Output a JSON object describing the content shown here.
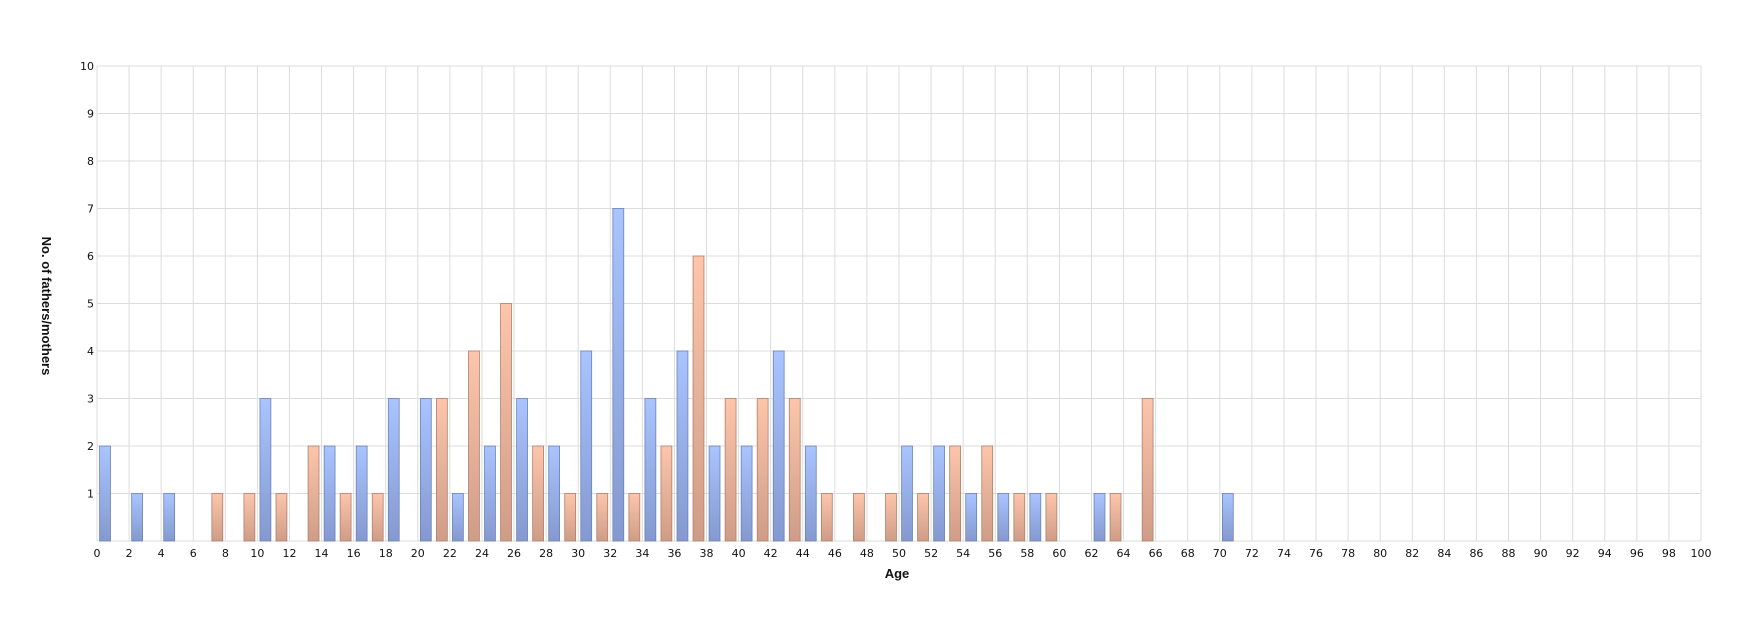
{
  "chart_data": {
    "type": "bar",
    "title": "",
    "xlabel": "Age",
    "ylabel": "No. of fathers/mothers",
    "xlim": [
      0,
      100
    ],
    "ylim": [
      0,
      10
    ],
    "x_ticks": [
      0,
      2,
      4,
      6,
      8,
      10,
      12,
      14,
      16,
      18,
      20,
      22,
      24,
      26,
      28,
      30,
      32,
      34,
      36,
      38,
      40,
      42,
      44,
      46,
      48,
      50,
      52,
      54,
      56,
      58,
      60,
      62,
      64,
      66,
      68,
      70,
      72,
      74,
      76,
      78,
      80,
      82,
      84,
      86,
      88,
      90,
      92,
      94,
      96,
      98,
      100
    ],
    "y_ticks": [
      1,
      2,
      3,
      4,
      5,
      6,
      7,
      8,
      9,
      10
    ],
    "grid": true,
    "series": [
      {
        "color": "#a4bdf5",
        "points": [
          {
            "x": 0,
            "y": 2
          },
          {
            "x": 2,
            "y": 1
          },
          {
            "x": 4,
            "y": 1
          },
          {
            "x": 10,
            "y": 3
          },
          {
            "x": 14,
            "y": 2
          },
          {
            "x": 16,
            "y": 2
          },
          {
            "x": 18,
            "y": 3
          },
          {
            "x": 20,
            "y": 3
          },
          {
            "x": 22,
            "y": 1
          },
          {
            "x": 24,
            "y": 2
          },
          {
            "x": 26,
            "y": 3
          },
          {
            "x": 28,
            "y": 2
          },
          {
            "x": 30,
            "y": 4
          },
          {
            "x": 32,
            "y": 7
          },
          {
            "x": 34,
            "y": 3
          },
          {
            "x": 36,
            "y": 4
          },
          {
            "x": 38,
            "y": 2
          },
          {
            "x": 40,
            "y": 2
          },
          {
            "x": 42,
            "y": 4
          },
          {
            "x": 44,
            "y": 2
          },
          {
            "x": 50,
            "y": 2
          },
          {
            "x": 52,
            "y": 2
          },
          {
            "x": 54,
            "y": 1
          },
          {
            "x": 56,
            "y": 1
          },
          {
            "x": 58,
            "y": 1
          },
          {
            "x": 62,
            "y": 1
          },
          {
            "x": 70,
            "y": 1
          }
        ]
      },
      {
        "color": "#f7c0a4",
        "points": [
          {
            "x": 7,
            "y": 1
          },
          {
            "x": 9,
            "y": 1
          },
          {
            "x": 11,
            "y": 1
          },
          {
            "x": 13,
            "y": 2
          },
          {
            "x": 15,
            "y": 1
          },
          {
            "x": 17,
            "y": 1
          },
          {
            "x": 21,
            "y": 3
          },
          {
            "x": 23,
            "y": 4
          },
          {
            "x": 25,
            "y": 5
          },
          {
            "x": 27,
            "y": 2
          },
          {
            "x": 29,
            "y": 1
          },
          {
            "x": 31,
            "y": 1
          },
          {
            "x": 33,
            "y": 1
          },
          {
            "x": 35,
            "y": 2
          },
          {
            "x": 37,
            "y": 6
          },
          {
            "x": 39,
            "y": 3
          },
          {
            "x": 41,
            "y": 3
          },
          {
            "x": 43,
            "y": 3
          },
          {
            "x": 45,
            "y": 1
          },
          {
            "x": 47,
            "y": 1
          },
          {
            "x": 49,
            "y": 1
          },
          {
            "x": 51,
            "y": 1
          },
          {
            "x": 53,
            "y": 2
          },
          {
            "x": 55,
            "y": 2
          },
          {
            "x": 57,
            "y": 1
          },
          {
            "x": 59,
            "y": 1
          },
          {
            "x": 63,
            "y": 1
          },
          {
            "x": 65,
            "y": 3
          }
        ]
      }
    ]
  }
}
